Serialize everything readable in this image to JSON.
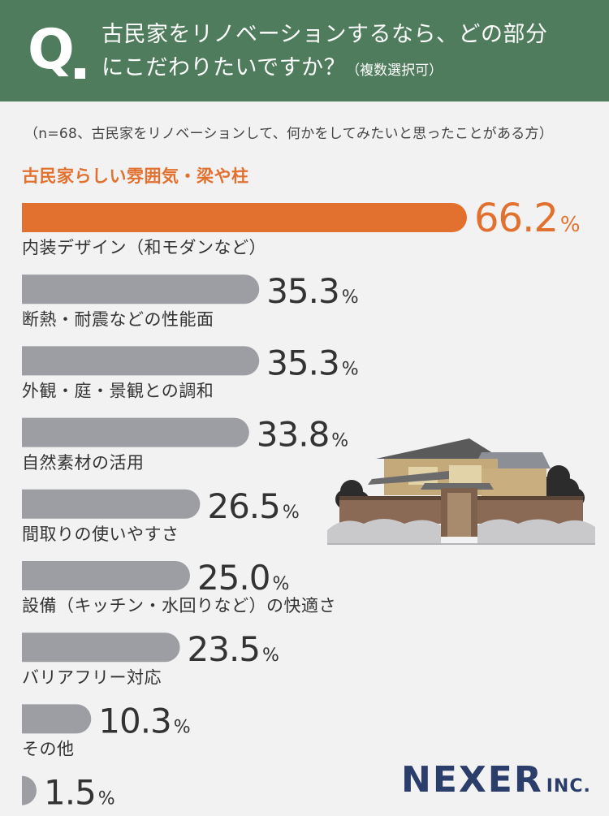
{
  "header": {
    "q_mark": "Q",
    "question_line1": "古民家をリノベーションするなら、どの部分",
    "question_line2": "にこだわりたいですか？",
    "question_note": "（複数選択可）"
  },
  "respondent_note": "（n=68、古民家をリノベーションして、何かをしてみたいと思ったことがある方）",
  "brand": {
    "name": "NEXER",
    "suffix": "INC."
  },
  "colors": {
    "header_bg": "#4f7c5d",
    "highlight": "#e27130",
    "bar": "#9d9ea3",
    "text": "#333333",
    "brand": "#2b3e6b"
  },
  "chart_data": {
    "type": "bar",
    "orientation": "horizontal",
    "categories": [
      "古民家らしい雰囲気・梁や柱",
      "内装デザイン（和モダンなど）",
      "断熱・耐震などの性能面",
      "外観・庭・景観との調和",
      "自然素材の活用",
      "間取りの使いやすさ",
      "設備（キッチン・水回りなど）の快適さ",
      "バリアフリー対応",
      "その他"
    ],
    "values": [
      66.2,
      35.3,
      35.3,
      33.8,
      26.5,
      25.0,
      23.5,
      10.3,
      1.5
    ],
    "value_labels": [
      "66.2",
      "35.3",
      "35.3",
      "33.8",
      "26.5",
      "25.0",
      "23.5",
      "10.3",
      "1.5"
    ],
    "unit": "%",
    "highlight_index": 0
  }
}
